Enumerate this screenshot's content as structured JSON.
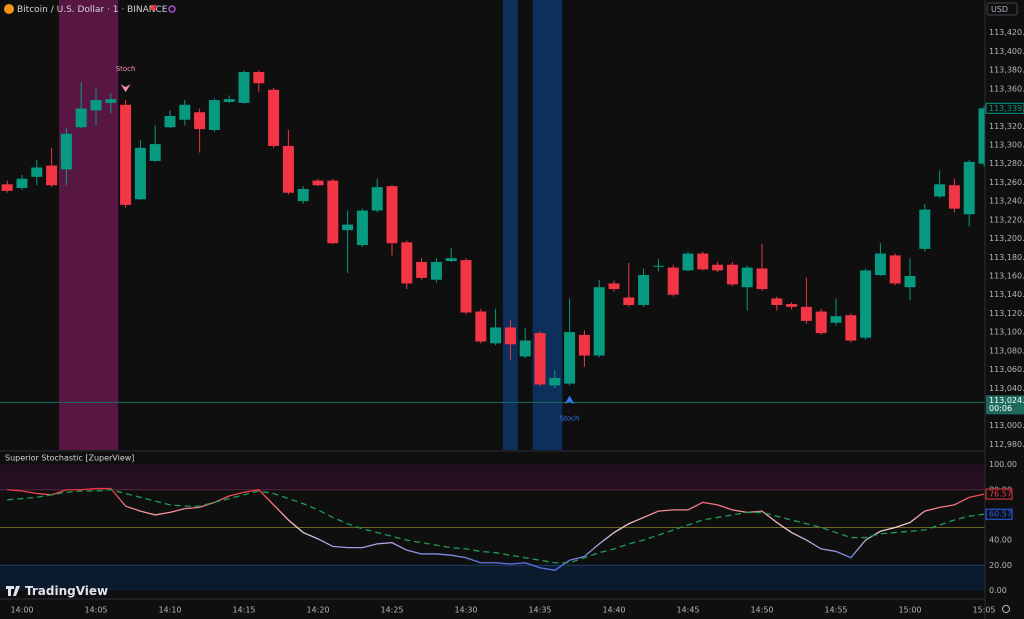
{
  "header": {
    "symbol": "Bitcoin / U.S. Dollar · 1 · BINANCE",
    "currency": "USD",
    "branding": "TradingView"
  },
  "chart_data": [
    {
      "type": "candlestick",
      "categories": [
        null,
        "14:00",
        null,
        null,
        null,
        null,
        "14:05",
        null,
        null,
        null,
        null,
        "14:10",
        null,
        null,
        null,
        null,
        "14:15",
        null,
        null,
        null,
        null,
        "14:20",
        null,
        null,
        null,
        null,
        "14:25",
        null,
        null,
        null,
        null,
        "14:30",
        null,
        null,
        null,
        null,
        "14:35",
        null,
        null,
        null,
        null,
        "14:40",
        null,
        null,
        null,
        null,
        "14:45",
        null,
        null,
        null,
        null,
        "14:50",
        null,
        null,
        null,
        null,
        "14:55",
        null,
        null,
        null,
        null,
        "15:00",
        null,
        null,
        null,
        null,
        "15:05"
      ],
      "open": [
        113258,
        113254,
        113266,
        113278,
        113274,
        113319,
        113337,
        113345,
        113343,
        113242,
        113283,
        113319,
        113327,
        113335,
        113316,
        113346,
        113345,
        113378,
        113359,
        113299,
        113240,
        113262,
        113262,
        113209,
        113193,
        113230,
        113256,
        113196,
        113175,
        113156,
        113176,
        113177,
        113122,
        113088,
        113105,
        113074,
        113099,
        113043,
        113045,
        113097,
        113075,
        113152,
        113137,
        113129,
        113170,
        113169,
        113166,
        113184,
        113172,
        113172,
        113148,
        113168,
        113136,
        113130,
        113127,
        113122,
        113110,
        113118,
        113094,
        113161,
        113182,
        113148,
        113189,
        113245,
        113257,
        113226,
        113280
      ],
      "high": [
        113262,
        113268,
        113284,
        113297,
        113318,
        113367,
        113361,
        113355,
        113348,
        113305,
        113321,
        113337,
        113348,
        113339,
        113350,
        113353,
        113380,
        113380,
        113361,
        113316,
        113256,
        113264,
        113264,
        113230,
        113232,
        113264,
        113257,
        113198,
        113179,
        113179,
        113190,
        113179,
        113125,
        113125,
        113113,
        113104,
        113101,
        113059,
        113136,
        113102,
        113156,
        113155,
        113174,
        113168,
        113178,
        113172,
        113186,
        113186,
        113175,
        113175,
        113171,
        113194,
        113138,
        113132,
        113158,
        113125,
        113136,
        113120,
        113168,
        113195,
        113184,
        113179,
        113237,
        113273,
        113264,
        113284,
        113342
      ],
      "low": [
        113249,
        113252,
        113257,
        113255,
        113257,
        113318,
        113321,
        113334,
        113233,
        113241,
        113282,
        113318,
        113321,
        113292,
        113314,
        113345,
        113344,
        113357,
        113297,
        113247,
        113237,
        113256,
        113194,
        113163,
        113191,
        113228,
        113182,
        113146,
        113156,
        113153,
        113175,
        113119,
        113088,
        113086,
        113070,
        113072,
        113042,
        113040,
        113043,
        113063,
        113073,
        113143,
        113127,
        113127,
        113165,
        113138,
        113165,
        113166,
        113164,
        113149,
        113123,
        113144,
        113123,
        113124,
        113109,
        113097,
        113107,
        113089,
        113092,
        113160,
        113150,
        113134,
        113186,
        113243,
        113228,
        113213,
        113277
      ],
      "close": [
        113251,
        113264,
        113276,
        113257,
        113312,
        113339,
        113348,
        113349,
        113236,
        113297,
        113301,
        113331,
        113343,
        113317,
        113348,
        113349,
        113378,
        113366,
        113299,
        113249,
        113253,
        113257,
        113195,
        113215,
        113230,
        113255,
        113195,
        113152,
        113158,
        113175,
        113179,
        113121,
        113090,
        113105,
        113087,
        113091,
        113044,
        113051,
        113100,
        113075,
        113148,
        113146,
        113129,
        113161,
        113171,
        113140,
        113184,
        113167,
        113166,
        113151,
        113169,
        113146,
        113129,
        113127,
        113112,
        113099,
        113117,
        113091,
        113166,
        113184,
        113152,
        113160,
        113231,
        113258,
        113232,
        113282,
        113339.2
      ],
      "last_label": "113,339.20",
      "up_color": "#089981",
      "down_color": "#f23645",
      "ylim": [
        112974,
        113455
      ],
      "yticks": [
        {
          "value": 112980,
          "label": "112,980.00"
        },
        {
          "value": 113000,
          "label": "113,000.00"
        },
        {
          "value": 113020,
          "label": "113,020.00"
        },
        {
          "value": 113040,
          "label": "113,040.00"
        },
        {
          "value": 113060,
          "label": "113,060.00"
        },
        {
          "value": 113080,
          "label": "113,080.00"
        },
        {
          "value": 113100,
          "label": "113,100.00"
        },
        {
          "value": 113120,
          "label": "113,120.00"
        },
        {
          "value": 113140,
          "label": "113,140.00"
        },
        {
          "value": 113160,
          "label": "113,160.00"
        },
        {
          "value": 113180,
          "label": "113,180.00"
        },
        {
          "value": 113200,
          "label": "113,200.00"
        },
        {
          "value": 113220,
          "label": "113,220.00"
        },
        {
          "value": 113240,
          "label": "113,240.00"
        },
        {
          "value": 113260,
          "label": "113,260.00"
        },
        {
          "value": 113280,
          "label": "113,280.00"
        },
        {
          "value": 113300,
          "label": "113,300.00"
        },
        {
          "value": 113320,
          "label": "113,320.00"
        },
        {
          "value": 113340,
          "label": "113,340.00"
        },
        {
          "value": 113360,
          "label": "113,360.00"
        },
        {
          "value": 113380,
          "label": "113,380.00"
        },
        {
          "value": 113400,
          "label": "113,400.00"
        },
        {
          "value": 113420,
          "label": "113,420.00"
        }
      ],
      "price_line": {
        "value": 113024.87,
        "label": "113,024.87",
        "countdown": "00:06",
        "color": "#1e6b5e"
      },
      "regions": [
        {
          "from": 4,
          "to": 7,
          "color": "#581642"
        },
        {
          "from": 34,
          "to": 34,
          "color": "#0d2f5c"
        },
        {
          "from": 36,
          "to": 37,
          "color": "#0d2f5c"
        }
      ],
      "annotations": [
        {
          "text": "Stoch",
          "index": 8,
          "position": "above",
          "color": "#f48fb1"
        },
        {
          "text": "Stoch",
          "index": 38,
          "position": "below",
          "color": "#2f7bf5"
        }
      ]
    },
    {
      "type": "line",
      "title": "Superior Stochastic [ZuperView]",
      "series": [
        {
          "gradient": [
            "#f23645",
            "#f3d0d8",
            "#5670e8"
          ],
          "values": [
            80,
            79,
            77,
            76,
            80,
            80,
            81,
            81,
            67,
            63,
            60,
            62,
            65,
            66,
            70,
            75,
            78,
            80,
            68,
            56,
            46,
            41,
            35,
            34,
            34,
            37,
            38,
            32,
            29,
            29,
            28,
            26,
            22,
            22,
            21,
            22,
            18,
            16,
            24,
            27,
            37,
            46,
            53,
            58,
            63,
            64,
            64,
            70,
            68,
            64,
            62,
            63,
            54,
            46,
            40,
            33,
            31,
            26,
            40,
            47,
            50,
            54,
            63,
            66,
            68,
            74,
            76.57
          ]
        },
        {
          "color": "#1f9d55",
          "dashed": true,
          "values": [
            72,
            73,
            74,
            76,
            78,
            79,
            79,
            80,
            77,
            74,
            71,
            68,
            67,
            67,
            70,
            73,
            76,
            79,
            77,
            73,
            69,
            64,
            58,
            53,
            49,
            46,
            43,
            40,
            38,
            36,
            34,
            33,
            31,
            30,
            28,
            26,
            24,
            22,
            22,
            26,
            30,
            33,
            37,
            40,
            44,
            48,
            52,
            56,
            58,
            60,
            62,
            62,
            59,
            56,
            53,
            50,
            46,
            42,
            42,
            45,
            46,
            47,
            48,
            52,
            56,
            59,
            60.57
          ]
        }
      ],
      "label_colors": [
        "#f23645",
        "#2962ff"
      ],
      "bands": [
        {
          "from": 80,
          "to": 100,
          "color": "#230e22"
        },
        {
          "from": 0,
          "to": 20,
          "color": "#0c1a2e"
        }
      ],
      "levels": [
        {
          "value": 80,
          "color": "#5a2a3c"
        },
        {
          "value": 50,
          "color": "#6b6420"
        },
        {
          "value": 20,
          "color": "#1d3a66"
        }
      ],
      "ylim": [
        -6,
        110
      ],
      "yticks": [
        {
          "value": 0,
          "label": "0.00"
        },
        {
          "value": 20,
          "label": "20.00"
        },
        {
          "value": 40,
          "label": "40.00"
        },
        {
          "value": 60,
          "label": "60.00"
        },
        {
          "value": 80,
          "label": "80.00"
        },
        {
          "value": 100,
          "label": "100.00"
        }
      ]
    }
  ]
}
